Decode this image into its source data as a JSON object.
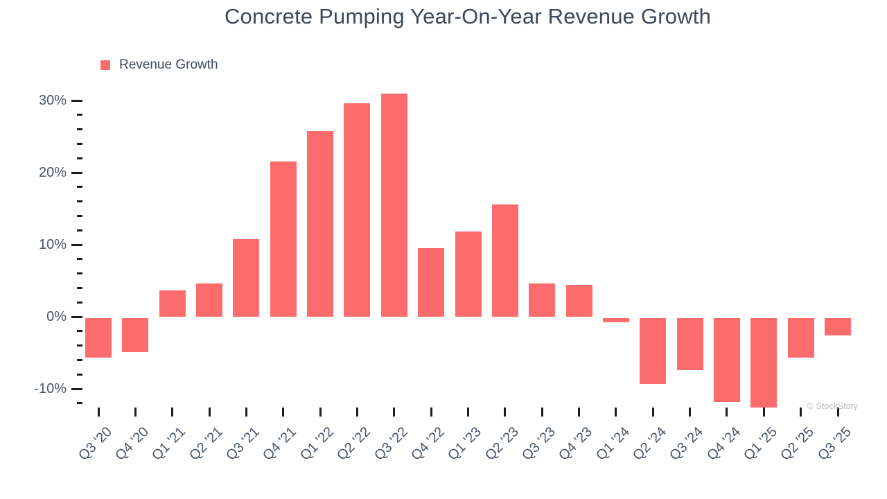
{
  "title": "Concrete Pumping Year-On-Year Revenue Growth",
  "legend": {
    "label": "Revenue Growth"
  },
  "watermark": "© StockStory",
  "colors": {
    "bar": "#fc6c6c",
    "title_text": "#3e4857",
    "axis_text": "#4a5568",
    "tick": "#1c1c1c",
    "watermark": "#b9bcbe"
  },
  "chart_data": {
    "type": "bar",
    "title": "Concrete Pumping Year-On-Year Revenue Growth",
    "series_name": "Revenue Growth",
    "categories": [
      "Q3 '20",
      "Q4 '20",
      "Q1 '21",
      "Q2 '21",
      "Q3 '21",
      "Q4 '21",
      "Q1 '22",
      "Q2 '22",
      "Q3 '22",
      "Q4 '22",
      "Q1 '23",
      "Q2 '23",
      "Q3 '23",
      "Q4 '23",
      "Q1 '24",
      "Q2 '24",
      "Q3 '24",
      "Q4 '24",
      "Q1 '25",
      "Q2 '25",
      "Q3 '25"
    ],
    "values": [
      -5.7,
      -4.9,
      3.7,
      4.6,
      10.8,
      21.5,
      25.8,
      29.6,
      31.0,
      9.5,
      11.8,
      15.6,
      4.6,
      4.4,
      -0.8,
      -9.3,
      -7.4,
      -11.8,
      -12.6,
      -5.7,
      -2.6
    ],
    "value_unit": "%",
    "xlabel": "",
    "ylabel": "",
    "ylim": [
      -14,
      32
    ],
    "y_major_ticks": [
      30,
      20,
      10,
      0,
      -10
    ],
    "y_major_tick_labels": [
      "30%",
      "20%",
      "10%",
      "0%",
      "-10%"
    ],
    "y_minor_tick_step": 2,
    "y_minor_tick_range": [
      -12,
      28
    ],
    "grid": false,
    "legend_position": "top-left",
    "bar_color": "#fc6c6c"
  }
}
